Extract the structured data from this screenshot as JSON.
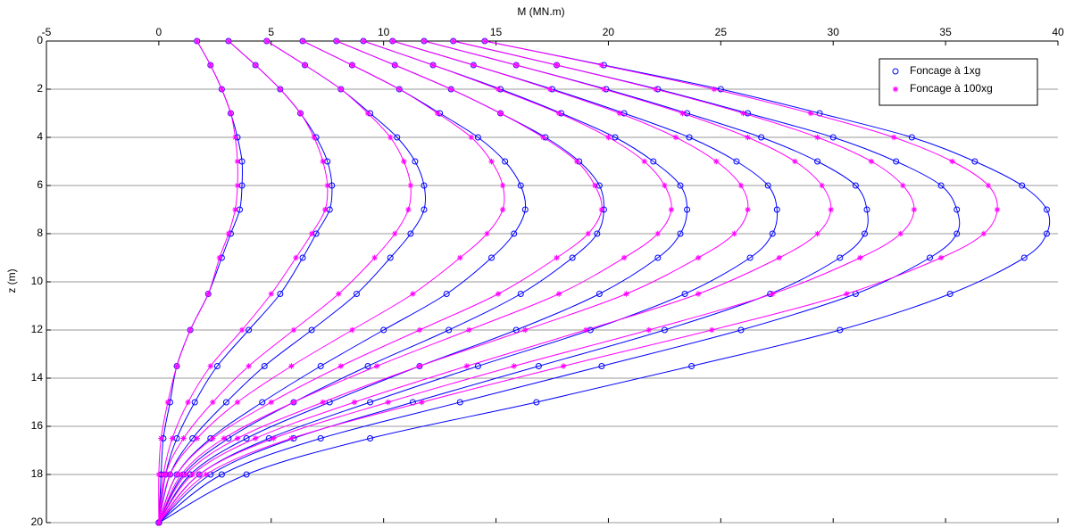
{
  "chart_data": {
    "type": "line",
    "title": "M (MN.m)",
    "y_label": "z (m)",
    "y": [
      0,
      1,
      2,
      3,
      4,
      5,
      6,
      7,
      8,
      9,
      10.5,
      12,
      13.5,
      15,
      16.5,
      18,
      20
    ],
    "xlim": [
      -5,
      40
    ],
    "xticks": [
      -5,
      0,
      5,
      10,
      15,
      20,
      25,
      30,
      35,
      40
    ],
    "ylim": [
      0,
      20
    ],
    "yticks": [
      0,
      2,
      4,
      6,
      8,
      10,
      12,
      14,
      16,
      18,
      20
    ],
    "y_reversed": true,
    "grid": "y",
    "legend": "upper right",
    "series": [
      {
        "name": "Foncage à 1xg",
        "color": "#0000ff",
        "marker": "o",
        "values": [
          [
            1.7,
            2.3,
            2.8,
            3.2,
            3.5,
            3.7,
            3.7,
            3.6,
            3.2,
            2.8,
            2.2,
            1.4,
            0.8,
            0.5,
            0.2,
            0.1,
            0
          ],
          [
            3.1,
            4.3,
            5.4,
            6.3,
            7.0,
            7.5,
            7.7,
            7.6,
            7.0,
            6.4,
            5.4,
            4.0,
            2.6,
            1.6,
            0.8,
            0.3,
            0
          ],
          [
            4.8,
            6.5,
            8.1,
            9.4,
            10.6,
            11.4,
            11.8,
            11.8,
            11.2,
            10.3,
            8.8,
            6.8,
            4.7,
            3.0,
            1.5,
            0.5,
            0
          ],
          [
            6.4,
            8.6,
            10.7,
            12.5,
            14.2,
            15.4,
            16.1,
            16.3,
            15.8,
            14.8,
            12.8,
            10.0,
            7.2,
            4.6,
            2.3,
            0.8,
            0
          ],
          [
            7.9,
            10.5,
            13.0,
            15.2,
            17.2,
            18.7,
            19.6,
            19.8,
            19.5,
            18.4,
            16.1,
            12.9,
            9.3,
            6.0,
            3.1,
            1.1,
            0
          ],
          [
            9.1,
            12.2,
            15.2,
            17.9,
            20.3,
            22.0,
            23.2,
            23.5,
            23.2,
            22.2,
            19.6,
            15.9,
            11.6,
            7.6,
            3.9,
            1.4,
            0
          ],
          [
            10.4,
            14.0,
            17.5,
            20.7,
            23.6,
            25.7,
            27.1,
            27.5,
            27.3,
            26.3,
            23.4,
            19.2,
            14.2,
            9.4,
            4.9,
            1.8,
            0
          ],
          [
            11.8,
            15.9,
            19.9,
            23.5,
            26.8,
            29.3,
            31.0,
            31.5,
            31.4,
            30.3,
            27.2,
            22.5,
            16.9,
            11.3,
            6.0,
            2.3,
            0
          ],
          [
            13.1,
            17.7,
            22.2,
            26.2,
            30.0,
            32.8,
            34.8,
            35.5,
            35.5,
            34.3,
            31.0,
            25.9,
            19.7,
            13.4,
            7.2,
            2.8,
            0
          ],
          [
            14.5,
            19.8,
            25.0,
            29.4,
            33.5,
            36.3,
            38.4,
            39.5,
            39.5,
            38.5,
            35.2,
            30.3,
            23.7,
            16.8,
            9.4,
            3.9,
            0
          ]
        ]
      },
      {
        "name": "Foncage à 100xg",
        "color": "#ff00ff",
        "marker": "*",
        "values": [
          [
            1.7,
            2.3,
            2.8,
            3.2,
            3.4,
            3.5,
            3.5,
            3.4,
            3.1,
            2.7,
            2.2,
            1.4,
            0.8,
            0.4,
            0.1,
            0.0,
            0
          ],
          [
            3.1,
            4.3,
            5.4,
            6.3,
            6.9,
            7.3,
            7.5,
            7.4,
            6.8,
            6.1,
            5.0,
            3.7,
            2.3,
            1.3,
            0.6,
            0.2,
            0
          ],
          [
            4.8,
            6.5,
            8.1,
            9.3,
            10.3,
            10.9,
            11.2,
            11.1,
            10.5,
            9.6,
            8.0,
            6.0,
            4.0,
            2.4,
            1.1,
            0.3,
            0
          ],
          [
            6.4,
            8.6,
            10.7,
            12.4,
            13.9,
            14.8,
            15.3,
            15.3,
            14.6,
            13.4,
            11.3,
            8.6,
            5.9,
            3.5,
            1.7,
            0.5,
            0
          ],
          [
            7.9,
            10.5,
            13.0,
            15.2,
            17.1,
            18.6,
            19.4,
            19.7,
            19.1,
            17.7,
            15.1,
            11.6,
            8.1,
            5.0,
            2.4,
            0.8,
            0
          ],
          [
            9.1,
            12.2,
            15.1,
            17.8,
            20.0,
            21.6,
            22.5,
            22.8,
            22.2,
            20.7,
            17.8,
            13.8,
            9.7,
            6.0,
            2.9,
            1.0,
            0
          ],
          [
            10.4,
            14.0,
            17.4,
            20.5,
            23.0,
            24.8,
            25.9,
            26.2,
            25.6,
            24.0,
            20.8,
            16.3,
            11.6,
            7.3,
            3.5,
            1.2,
            0
          ],
          [
            11.8,
            15.9,
            19.8,
            23.3,
            26.2,
            28.3,
            29.5,
            29.9,
            29.3,
            27.6,
            24.0,
            19.0,
            13.7,
            8.7,
            4.3,
            1.5,
            0
          ],
          [
            13.1,
            17.7,
            22.1,
            26.0,
            29.3,
            31.7,
            33.1,
            33.6,
            33.0,
            31.2,
            27.3,
            21.8,
            15.8,
            10.2,
            5.1,
            1.8,
            0
          ],
          [
            14.5,
            19.7,
            24.7,
            29.0,
            32.7,
            35.3,
            36.9,
            37.3,
            36.7,
            34.8,
            30.6,
            24.6,
            18.0,
            11.7,
            5.9,
            2.1,
            0
          ]
        ]
      }
    ]
  }
}
